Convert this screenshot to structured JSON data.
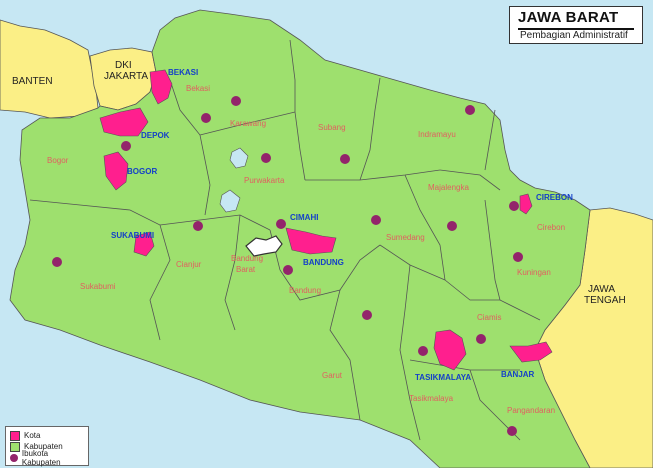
{
  "title": "JAWA BARAT",
  "subtitle": "Pembagian Administratif",
  "colors": {
    "sea": "#c6e7f3",
    "kota": "#ff1f8e",
    "kabupaten": "#9ee06e",
    "neighbour": "#fbef86",
    "ibukota": "#93246b",
    "border": "#555555",
    "kota_label": "#1440c8",
    "kab_label": "#e06060"
  },
  "legend": {
    "kota": "Kota",
    "kabupaten": "Kabupaten",
    "ibukota": "Ibukota Kabupaten"
  },
  "neighbours": {
    "banten": "BANTEN",
    "dki_1": "DKI",
    "dki_2": "JAKARTA",
    "jateng_1": "JAWA",
    "jateng_2": "TENGAH"
  },
  "kota_labels": {
    "bekasi": "BEKASI",
    "depok": "DEPOK",
    "bogor": "BOGOR",
    "sukabumi": "SUKABUMI",
    "cimahi": "CIMAHI",
    "bandung": "BANDUNG",
    "cirebon": "CIREBON",
    "tasikmalaya": "TASIKMALAYA",
    "banjar": "BANJAR"
  },
  "kabupaten_labels": {
    "bekasi": "Bekasi",
    "karawang": "Karawang",
    "subang": "Subang",
    "indramayu": "Indramayu",
    "bogor": "Bogor",
    "purwakarta": "Purwakarta",
    "majalengka": "Majalengka",
    "cirebon": "Cirebon",
    "sumedang": "Sumedang",
    "kuningan": "Kuningan",
    "bandung_barat_1": "Bandung",
    "bandung_barat_2": "Barat",
    "cianjur": "Cianjur",
    "bandung": "Bandung",
    "sukabumi": "Sukabumi",
    "ciamis": "Ciamis",
    "garut": "Garut",
    "tasikmalaya": "Tasikmalaya",
    "pangandaran": "Pangandaran"
  }
}
